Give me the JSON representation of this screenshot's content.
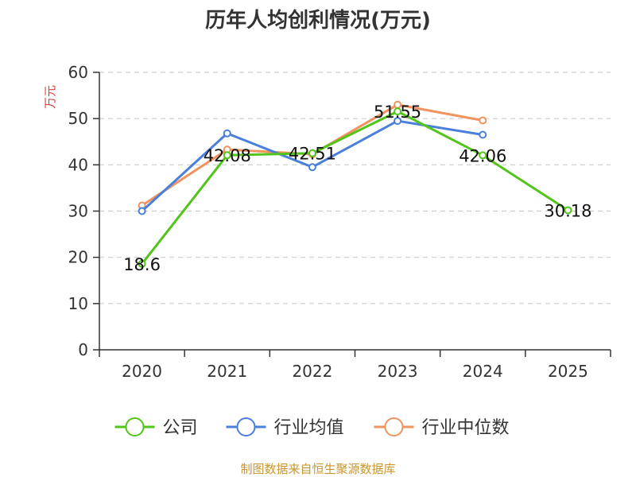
{
  "chart_data": {
    "type": "line",
    "title": "历年人均创利情况(万元)",
    "ylabel": "万元",
    "xlabel": "",
    "categories": [
      "2020",
      "2021",
      "2022",
      "2023",
      "2024",
      "2025"
    ],
    "ylim": [
      0,
      60
    ],
    "yticks": [
      0,
      10,
      20,
      30,
      40,
      50,
      60
    ],
    "grid": true,
    "legend_position": "bottom",
    "series": [
      {
        "name": "公司",
        "color": "#52c41a",
        "values": [
          18.6,
          42.08,
          42.51,
          51.55,
          42.06,
          30.18
        ],
        "show_labels": true
      },
      {
        "name": "行业均值",
        "color": "#4a7fdb",
        "values": [
          30.0,
          46.8,
          39.5,
          49.5,
          46.5,
          null
        ],
        "show_labels": false
      },
      {
        "name": "行业中位数",
        "color": "#f0935e",
        "values": [
          31.2,
          43.3,
          42.3,
          53.0,
          49.6,
          null
        ],
        "show_labels": false
      }
    ],
    "data_labels": [
      "18.6",
      "42.08",
      "42.51",
      "51.55",
      "42.06",
      "30.18"
    ]
  },
  "source": "制图数据来自恒生聚源数据库",
  "colors": {
    "ylabel": "#e03c3c",
    "source": "#c8962e",
    "grid": "#cccccc",
    "axis": "#333333"
  }
}
